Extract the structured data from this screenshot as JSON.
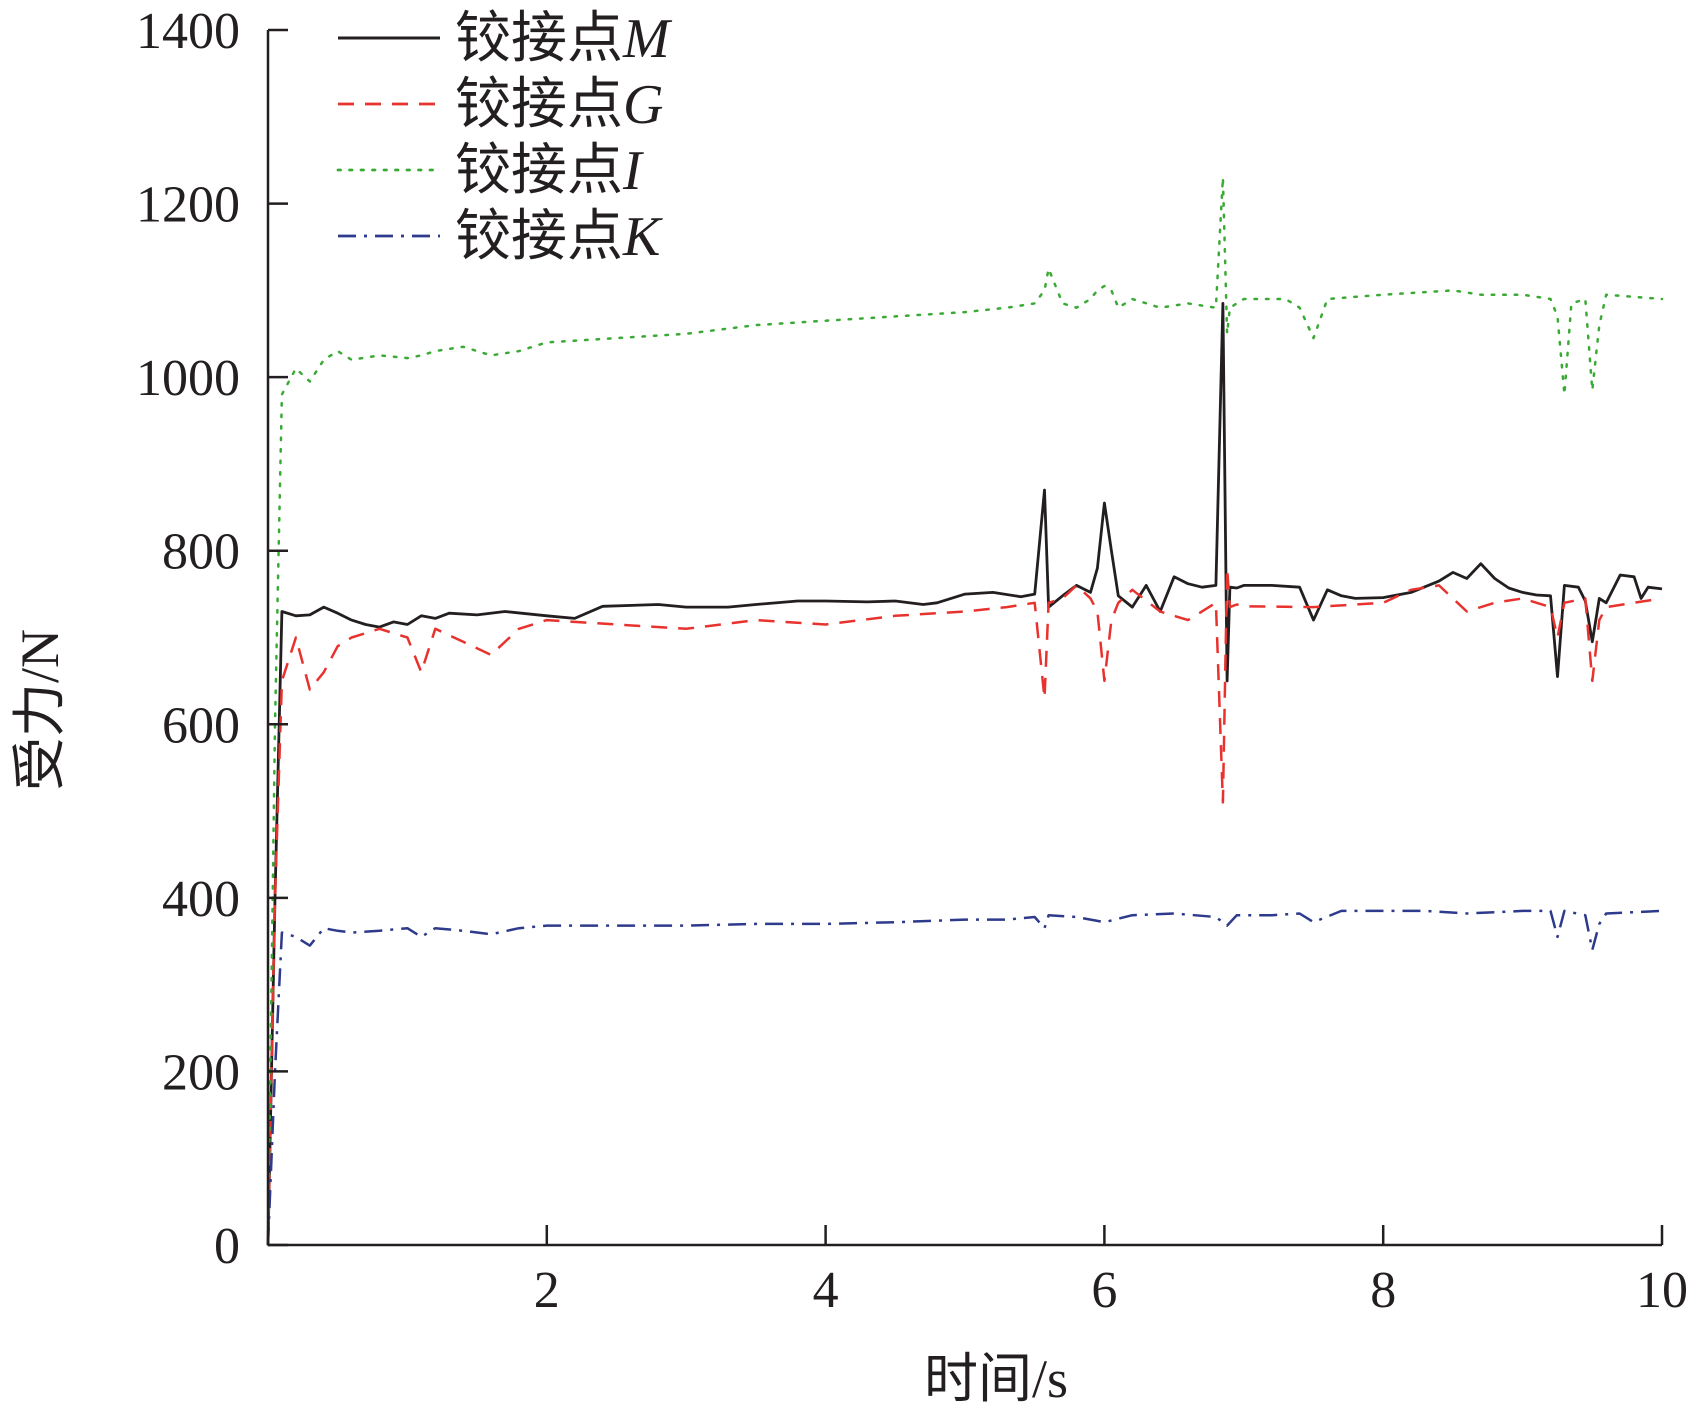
{
  "chart_data": {
    "type": "line",
    "title": "",
    "xlabel": "时间/s",
    "ylabel": "受力/N",
    "xlim": [
      0,
      10
    ],
    "ylim": [
      0,
      1400
    ],
    "xticks": [
      2,
      4,
      6,
      8,
      10
    ],
    "yticks": [
      0,
      200,
      400,
      600,
      800,
      1000,
      1200,
      1400
    ],
    "grid": false,
    "legend_position": "top-left",
    "series": [
      {
        "name": "铰接点",
        "symbol": "M",
        "color": "#231f20",
        "dash": "solid",
        "x": [
          0,
          0.05,
          0.1,
          0.2,
          0.3,
          0.4,
          0.5,
          0.6,
          0.7,
          0.8,
          0.9,
          1.0,
          1.1,
          1.2,
          1.3,
          1.5,
          1.7,
          2.0,
          2.2,
          2.4,
          2.8,
          3.0,
          3.3,
          3.5,
          3.8,
          4.0,
          4.3,
          4.5,
          4.7,
          4.8,
          5.0,
          5.2,
          5.4,
          5.5,
          5.57,
          5.6,
          5.7,
          5.8,
          5.9,
          5.95,
          6.0,
          6.05,
          6.1,
          6.2,
          6.3,
          6.4,
          6.5,
          6.6,
          6.7,
          6.8,
          6.85,
          6.88,
          6.9,
          6.95,
          7.0,
          7.2,
          7.4,
          7.5,
          7.6,
          7.7,
          7.8,
          8.0,
          8.2,
          8.4,
          8.5,
          8.6,
          8.7,
          8.8,
          8.9,
          9.0,
          9.1,
          9.2,
          9.25,
          9.3,
          9.4,
          9.45,
          9.5,
          9.55,
          9.6,
          9.7,
          9.8,
          9.85,
          9.9,
          10.0
        ],
        "y": [
          0,
          400,
          730,
          725,
          726,
          735,
          728,
          720,
          715,
          712,
          718,
          715,
          725,
          722,
          728,
          726,
          730,
          725,
          722,
          736,
          738,
          735,
          735,
          738,
          742,
          742,
          741,
          742,
          738,
          740,
          750,
          752,
          747,
          750,
          870,
          735,
          748,
          760,
          752,
          780,
          855,
          800,
          748,
          735,
          760,
          730,
          770,
          762,
          758,
          760,
          1085,
          650,
          758,
          757,
          760,
          760,
          758,
          720,
          755,
          748,
          745,
          746,
          752,
          765,
          775,
          768,
          785,
          768,
          757,
          752,
          749,
          748,
          655,
          760,
          758,
          742,
          695,
          745,
          740,
          772,
          770,
          745,
          758,
          756
        ]
      },
      {
        "name": "铰接点",
        "symbol": "G",
        "color": "#e8322d",
        "dash": "dashed",
        "x": [
          0,
          0.05,
          0.1,
          0.2,
          0.3,
          0.4,
          0.5,
          0.6,
          0.8,
          1.0,
          1.1,
          1.2,
          1.4,
          1.6,
          1.8,
          2.0,
          2.5,
          3.0,
          3.5,
          4.0,
          4.5,
          5.0,
          5.3,
          5.5,
          5.57,
          5.6,
          5.7,
          5.8,
          5.9,
          5.95,
          6.0,
          6.05,
          6.1,
          6.2,
          6.4,
          6.6,
          6.8,
          6.85,
          6.88,
          6.9,
          6.95,
          7.0,
          7.5,
          8.0,
          8.2,
          8.4,
          8.6,
          8.8,
          9.0,
          9.2,
          9.25,
          9.3,
          9.45,
          9.5,
          9.55,
          9.6,
          10.0
        ],
        "y": [
          0,
          400,
          650,
          700,
          640,
          660,
          690,
          700,
          710,
          700,
          660,
          710,
          695,
          680,
          710,
          720,
          715,
          710,
          720,
          715,
          725,
          730,
          735,
          740,
          630,
          740,
          745,
          760,
          745,
          730,
          650,
          720,
          740,
          755,
          730,
          720,
          740,
          510,
          780,
          735,
          738,
          736,
          735,
          740,
          755,
          760,
          730,
          740,
          745,
          735,
          700,
          740,
          745,
          650,
          720,
          735,
          745
        ]
      },
      {
        "name": "铰接点",
        "symbol": "I",
        "color": "#3aaa35",
        "dash": "dotted",
        "x": [
          0,
          0.05,
          0.1,
          0.2,
          0.3,
          0.4,
          0.5,
          0.6,
          0.8,
          1.0,
          1.1,
          1.2,
          1.4,
          1.6,
          1.8,
          2.0,
          2.5,
          3.0,
          3.5,
          4.0,
          4.5,
          5.0,
          5.3,
          5.5,
          5.57,
          5.6,
          5.7,
          5.8,
          5.9,
          5.95,
          6.0,
          6.05,
          6.1,
          6.2,
          6.4,
          6.6,
          6.8,
          6.85,
          6.88,
          6.9,
          6.95,
          7.0,
          7.3,
          7.4,
          7.5,
          7.6,
          8.0,
          8.5,
          8.7,
          9.0,
          9.2,
          9.25,
          9.3,
          9.35,
          9.45,
          9.5,
          9.55,
          9.6,
          10.0
        ],
        "y": [
          0,
          600,
          980,
          1010,
          995,
          1020,
          1030,
          1020,
          1025,
          1022,
          1025,
          1030,
          1035,
          1025,
          1030,
          1040,
          1045,
          1050,
          1060,
          1065,
          1070,
          1075,
          1080,
          1085,
          1100,
          1125,
          1085,
          1080,
          1090,
          1100,
          1105,
          1100,
          1080,
          1090,
          1080,
          1085,
          1080,
          1230,
          1050,
          1080,
          1085,
          1090,
          1090,
          1080,
          1045,
          1090,
          1095,
          1100,
          1095,
          1095,
          1090,
          1070,
          980,
          1085,
          1090,
          985,
          1060,
          1095,
          1090
        ]
      },
      {
        "name": "铰接点",
        "symbol": "K",
        "color": "#2e3a8c",
        "dash": "dashdot",
        "x": [
          0,
          0.05,
          0.1,
          0.2,
          0.3,
          0.4,
          0.5,
          0.6,
          0.8,
          1.0,
          1.1,
          1.2,
          1.4,
          1.6,
          1.8,
          2.0,
          2.5,
          3.0,
          3.5,
          4.0,
          4.5,
          5.0,
          5.3,
          5.5,
          5.57,
          5.6,
          5.8,
          6.0,
          6.2,
          6.5,
          6.8,
          6.88,
          6.95,
          7.2,
          7.4,
          7.5,
          7.7,
          8.0,
          8.3,
          8.6,
          9.0,
          9.2,
          9.25,
          9.3,
          9.45,
          9.5,
          9.55,
          9.6,
          10.0
        ],
        "y": [
          0,
          200,
          360,
          355,
          345,
          365,
          362,
          360,
          362,
          365,
          355,
          365,
          362,
          358,
          365,
          368,
          368,
          368,
          370,
          370,
          372,
          375,
          375,
          378,
          365,
          380,
          378,
          372,
          380,
          382,
          378,
          368,
          380,
          380,
          382,
          372,
          385,
          385,
          385,
          382,
          385,
          385,
          355,
          385,
          380,
          340,
          370,
          382,
          385
        ]
      }
    ]
  }
}
